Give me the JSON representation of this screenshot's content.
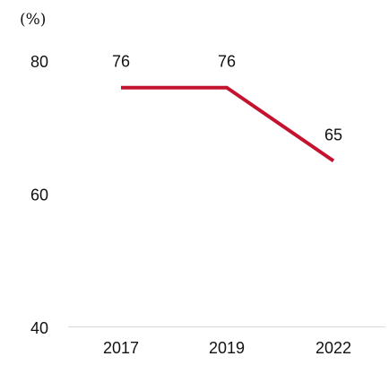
{
  "chart_data": {
    "type": "line",
    "title": "",
    "xlabel": "",
    "ylabel": "",
    "unit_label": "(%)",
    "categories": [
      "2017",
      "2019",
      "2022"
    ],
    "series": [
      {
        "values": [
          76,
          76,
          65
        ],
        "color": "#c4122f"
      }
    ],
    "data_labels": [
      "76",
      "76",
      "65"
    ],
    "y_ticks": [
      40,
      60,
      80
    ],
    "y_tick_labels": [
      "40",
      "60",
      "80"
    ],
    "ylim": [
      40,
      80
    ],
    "grid": false,
    "baseline_color": "#d9d9d9",
    "legend": "none"
  }
}
